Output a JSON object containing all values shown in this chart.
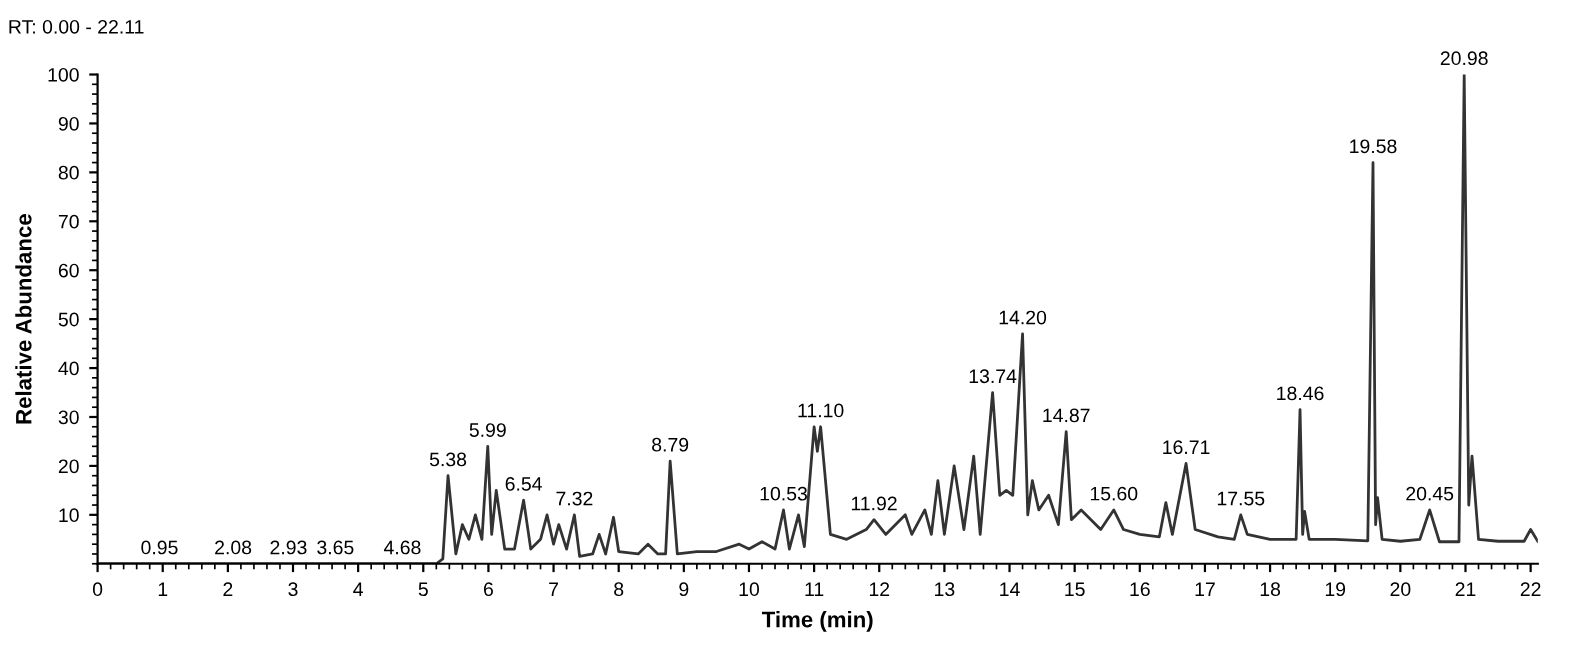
{
  "chart_data": {
    "type": "line",
    "title": "RT: 0.00 - 22.11",
    "xlabel": "Time (min)",
    "ylabel": "Relative Abundance",
    "xlim": [
      0,
      22.11
    ],
    "ylim": [
      0,
      100
    ],
    "xticks": [
      0,
      1,
      2,
      3,
      4,
      5,
      6,
      7,
      8,
      9,
      10,
      11,
      12,
      13,
      14,
      15,
      16,
      17,
      18,
      19,
      20,
      21,
      22
    ],
    "yticks": [
      10,
      20,
      30,
      40,
      50,
      60,
      70,
      80,
      90,
      100
    ],
    "grid": false,
    "marker": "none",
    "line_style": "solid",
    "series": [
      {
        "color": "#333333",
        "x": [
          0,
          0.95,
          2.08,
          2.93,
          3.65,
          4.68,
          5.2,
          5.3,
          5.38,
          5.5,
          5.6,
          5.7,
          5.8,
          5.9,
          5.99,
          6.05,
          6.12,
          6.25,
          6.4,
          6.54,
          6.65,
          6.8,
          6.9,
          7.0,
          7.08,
          7.2,
          7.32,
          7.4,
          7.6,
          7.7,
          7.8,
          7.92,
          8.0,
          8.3,
          8.45,
          8.6,
          8.72,
          8.79,
          8.9,
          9.2,
          9.5,
          9.85,
          10.0,
          10.2,
          10.4,
          10.53,
          10.62,
          10.76,
          10.85,
          11.0,
          11.05,
          11.1,
          11.25,
          11.5,
          11.8,
          11.92,
          12.1,
          12.4,
          12.5,
          12.7,
          12.8,
          12.9,
          13.0,
          13.15,
          13.3,
          13.45,
          13.55,
          13.74,
          13.85,
          13.95,
          14.05,
          14.2,
          14.28,
          14.35,
          14.45,
          14.6,
          14.75,
          14.87,
          14.95,
          15.1,
          15.4,
          15.6,
          15.75,
          16.0,
          16.3,
          16.4,
          16.5,
          16.71,
          16.85,
          17.2,
          17.45,
          17.55,
          17.65,
          18.0,
          18.4,
          18.46,
          18.5,
          18.53,
          18.6,
          19.0,
          19.5,
          19.58,
          19.62,
          19.65,
          19.72,
          20.0,
          20.3,
          20.45,
          20.6,
          20.9,
          20.98,
          21.05,
          21.1,
          21.2,
          21.5,
          21.9,
          22.0,
          22.11
        ],
        "values": [
          0,
          0,
          0,
          0,
          0,
          0,
          0,
          1,
          18,
          2,
          8,
          5,
          10,
          5,
          24,
          6,
          15,
          3,
          3,
          13,
          3,
          5,
          10,
          4,
          8,
          3,
          10,
          1.5,
          2,
          6,
          2,
          9.5,
          2.5,
          2,
          4,
          2,
          2,
          21,
          2,
          2.5,
          2.5,
          4,
          3,
          4.5,
          3,
          11,
          3,
          10,
          3.5,
          28,
          23,
          28,
          6,
          5,
          7,
          9,
          6,
          10,
          6,
          11,
          6,
          17,
          6,
          20,
          7,
          22,
          6,
          35,
          14,
          15,
          14,
          47,
          10,
          17,
          11,
          14,
          8,
          27,
          9,
          11,
          7,
          11,
          7,
          6,
          5.5,
          12.5,
          6,
          20.5,
          7,
          5.5,
          5,
          10,
          6,
          5,
          5,
          31.5,
          6,
          10.7,
          5,
          5,
          4.7,
          82,
          8,
          13.5,
          5,
          4.6,
          5,
          11,
          4.5,
          4.5,
          100,
          12,
          22,
          5,
          4.6,
          4.6,
          7,
          4.6
        ]
      }
    ],
    "annotations": [
      {
        "text": "0.95",
        "x": 0.95,
        "y": 0
      },
      {
        "text": "2.08",
        "x": 2.08,
        "y": 0
      },
      {
        "text": "2.93",
        "x": 2.93,
        "y": 0
      },
      {
        "text": "3.65",
        "x": 3.65,
        "y": 0
      },
      {
        "text": "4.68",
        "x": 4.68,
        "y": 0
      },
      {
        "text": "5.38",
        "x": 5.38,
        "y": 18
      },
      {
        "text": "5.99",
        "x": 5.99,
        "y": 24
      },
      {
        "text": "6.54",
        "x": 6.54,
        "y": 13
      },
      {
        "text": "7.32",
        "x": 7.32,
        "y": 10
      },
      {
        "text": "8.79",
        "x": 8.79,
        "y": 21
      },
      {
        "text": "10.53",
        "x": 10.53,
        "y": 11
      },
      {
        "text": "11.10",
        "x": 11.1,
        "y": 28
      },
      {
        "text": "11.92",
        "x": 11.92,
        "y": 9
      },
      {
        "text": "13.74",
        "x": 13.74,
        "y": 35
      },
      {
        "text": "14.20",
        "x": 14.2,
        "y": 47
      },
      {
        "text": "14.87",
        "x": 14.87,
        "y": 27
      },
      {
        "text": "15.60",
        "x": 15.6,
        "y": 11
      },
      {
        "text": "16.71",
        "x": 16.71,
        "y": 20.5
      },
      {
        "text": "17.55",
        "x": 17.55,
        "y": 10
      },
      {
        "text": "18.46",
        "x": 18.46,
        "y": 31.5
      },
      {
        "text": "19.58",
        "x": 19.58,
        "y": 82
      },
      {
        "text": "20.45",
        "x": 20.45,
        "y": 11
      },
      {
        "text": "20.98",
        "x": 20.98,
        "y": 100
      }
    ]
  }
}
